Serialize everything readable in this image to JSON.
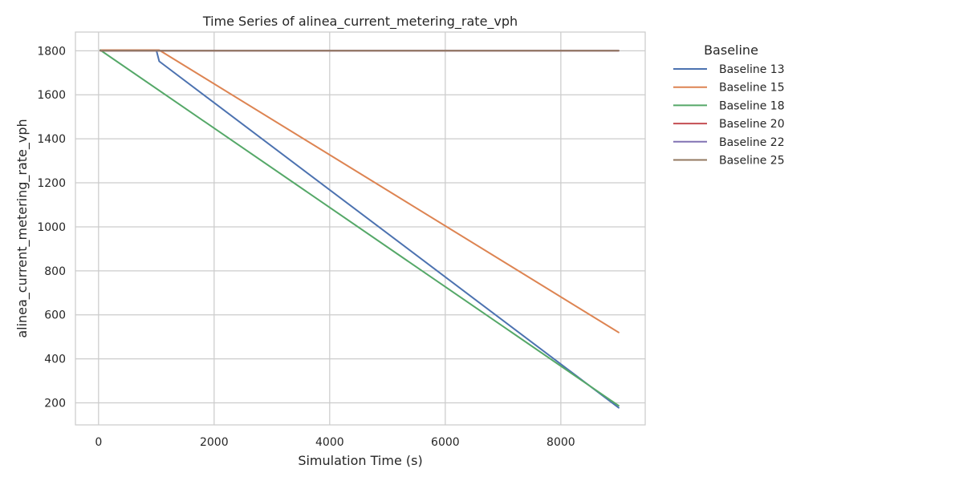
{
  "chart_data": {
    "type": "line",
    "title": "Time Series of alinea_current_metering_rate_vph",
    "xlabel": "Simulation Time (s)",
    "ylabel": "alinea_current_metering_rate_vph",
    "xlim": [
      -400,
      9460
    ],
    "ylim": [
      100,
      1885
    ],
    "xticks": [
      0,
      2000,
      4000,
      6000,
      8000
    ],
    "yticks": [
      200,
      400,
      600,
      800,
      1000,
      1200,
      1400,
      1600,
      1800
    ],
    "grid": true,
    "legend_title": "Baseline",
    "legend_position": "outside-right",
    "series": [
      {
        "name": "Baseline 13",
        "color": "#4c72b0",
        "x": [
          30,
          1000,
          1050,
          9000
        ],
        "y": [
          1803,
          1803,
          1752,
          178
        ]
      },
      {
        "name": "Baseline 15",
        "color": "#dd8452",
        "x": [
          30,
          1050,
          9000
        ],
        "y": [
          1803,
          1803,
          520
        ]
      },
      {
        "name": "Baseline 18",
        "color": "#55a868",
        "x": [
          30,
          9000
        ],
        "y": [
          1803,
          187
        ]
      },
      {
        "name": "Baseline 20",
        "color": "#c44e52",
        "x": [
          30,
          9000
        ],
        "y": [
          1800,
          1800
        ]
      },
      {
        "name": "Baseline 22",
        "color": "#8172b3",
        "x": [
          30,
          9000
        ],
        "y": [
          1800,
          1800
        ]
      },
      {
        "name": "Baseline 25",
        "color": "#937860",
        "x": [
          30,
          9000
        ],
        "y": [
          1800,
          1800
        ]
      }
    ]
  }
}
